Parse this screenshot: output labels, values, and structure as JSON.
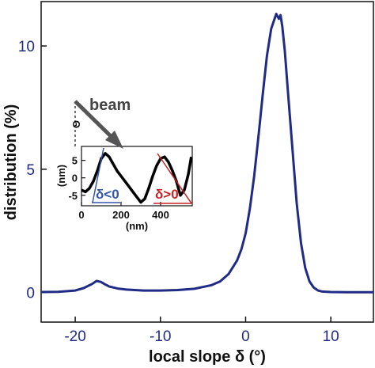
{
  "chart_data": [
    {
      "type": "line",
      "title": "",
      "xlabel": "local slope δ (°)",
      "ylabel": "distribution (%)",
      "xlim": [
        -24,
        15
      ],
      "ylim": [
        -1.2,
        11.8
      ],
      "xticks": [
        -20,
        -10,
        0,
        10
      ],
      "xtick_labels": [
        "-20",
        "-10",
        "0",
        "10"
      ],
      "yticks": [
        0,
        5,
        10
      ],
      "ytick_labels": [
        "0",
        "5",
        "10"
      ],
      "grid": false,
      "series": [
        {
          "color": "#1f2b86",
          "x": [
            -24,
            -22,
            -20,
            -19,
            -18,
            -17.5,
            -17,
            -16.5,
            -16,
            -15,
            -14,
            -12,
            -10,
            -8,
            -6,
            -4,
            -3,
            -2,
            -1,
            -0.5,
            0,
            0.5,
            1,
            1.5,
            2,
            2.5,
            3,
            3.3,
            3.6,
            3.9,
            4.1,
            4.3,
            4.6,
            5,
            5.5,
            6,
            6.5,
            7,
            7.5,
            8,
            8.5,
            9,
            10,
            12,
            15
          ],
          "y": [
            0.02,
            0.03,
            0.08,
            0.18,
            0.35,
            0.47,
            0.43,
            0.33,
            0.24,
            0.16,
            0.12,
            0.08,
            0.08,
            0.1,
            0.15,
            0.3,
            0.45,
            0.75,
            1.3,
            1.75,
            2.4,
            3.4,
            4.7,
            6.3,
            8.0,
            9.6,
            10.7,
            11.0,
            11.3,
            11.1,
            11.25,
            10.8,
            9.8,
            8.0,
            5.8,
            3.6,
            2.0,
            1.0,
            0.45,
            0.2,
            0.08,
            0.04,
            0.02,
            0.01,
            0.01
          ]
        }
      ]
    },
    {
      "type": "line",
      "title": "",
      "xlabel": "(nm)",
      "ylabel": "(nm)",
      "xlim": [
        0,
        560
      ],
      "ylim": [
        -8,
        9
      ],
      "xticks": [
        0,
        200,
        400
      ],
      "xtick_labels": [
        "0",
        "200",
        "400"
      ],
      "yticks": [
        5,
        0,
        -5
      ],
      "ytick_labels": [
        "5",
        "0",
        "-5"
      ],
      "series": [
        {
          "color": "#000000",
          "x": [
            0,
            20,
            40,
            60,
            80,
            100,
            120,
            140,
            160,
            180,
            200,
            220,
            240,
            260,
            280,
            300,
            320,
            340,
            360,
            380,
            400,
            420,
            440,
            460,
            480,
            500,
            520,
            540,
            555
          ],
          "y": [
            -3.5,
            -4.0,
            -3.0,
            -1.0,
            2.0,
            5.5,
            7.0,
            6.0,
            4.0,
            2.0,
            0.5,
            -1.0,
            -2.5,
            -4.0,
            -5.5,
            -7.0,
            -6.0,
            -3.0,
            0.5,
            3.5,
            5.5,
            6.0,
            4.5,
            2.0,
            -1.0,
            -5.0,
            -3.5,
            1.0,
            6.0
          ]
        }
      ]
    }
  ],
  "annotations": {
    "beam_label": "beam",
    "theta_label": "Θ",
    "neg_label": "δ<0",
    "pos_label": "δ>0"
  },
  "colors": {
    "main_line": "#1f2b86",
    "tick_text": "#1f2b86",
    "arrow": "#555555",
    "neg_annotation": "#3355aa",
    "pos_annotation": "#cc2222"
  }
}
